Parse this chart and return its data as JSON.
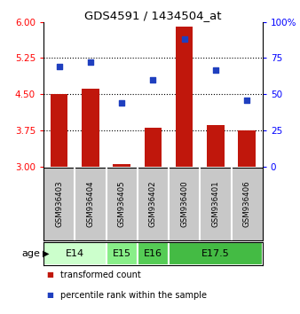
{
  "title": "GDS4591 / 1434504_at",
  "samples": [
    "GSM936403",
    "GSM936404",
    "GSM936405",
    "GSM936402",
    "GSM936400",
    "GSM936401",
    "GSM936406"
  ],
  "bar_values": [
    4.5,
    4.62,
    3.05,
    3.8,
    5.9,
    3.85,
    3.75
  ],
  "bar_baseline": 3.0,
  "blue_values": [
    69,
    72,
    44,
    60,
    88,
    67,
    46
  ],
  "left_ylim": [
    3.0,
    6.0
  ],
  "left_yticks": [
    3,
    3.75,
    4.5,
    5.25,
    6
  ],
  "right_ylim": [
    0,
    100
  ],
  "right_yticks": [
    0,
    25,
    50,
    75,
    100
  ],
  "right_yticklabels": [
    "0",
    "25",
    "50",
    "75",
    "100%"
  ],
  "bar_color": "#C0170C",
  "blue_color": "#1F3FBF",
  "age_groups": [
    {
      "label": "E14",
      "samples": [
        "GSM936403",
        "GSM936404"
      ],
      "color": "#CCFFCC"
    },
    {
      "label": "E15",
      "samples": [
        "GSM936405"
      ],
      "color": "#88EE88"
    },
    {
      "label": "E16",
      "samples": [
        "GSM936402"
      ],
      "color": "#55CC55"
    },
    {
      "label": "E17.5",
      "samples": [
        "GSM936400",
        "GSM936401",
        "GSM936406"
      ],
      "color": "#44BB44"
    }
  ],
  "age_label": "age",
  "sample_box_color": "#C8C8C8",
  "dotted_yticks": [
    3.75,
    4.5,
    5.25
  ],
  "legend_items": [
    {
      "color": "#C0170C",
      "label": "transformed count"
    },
    {
      "color": "#1F3FBF",
      "label": "percentile rank within the sample"
    }
  ],
  "figsize": [
    3.38,
    3.54
  ],
  "dpi": 100
}
